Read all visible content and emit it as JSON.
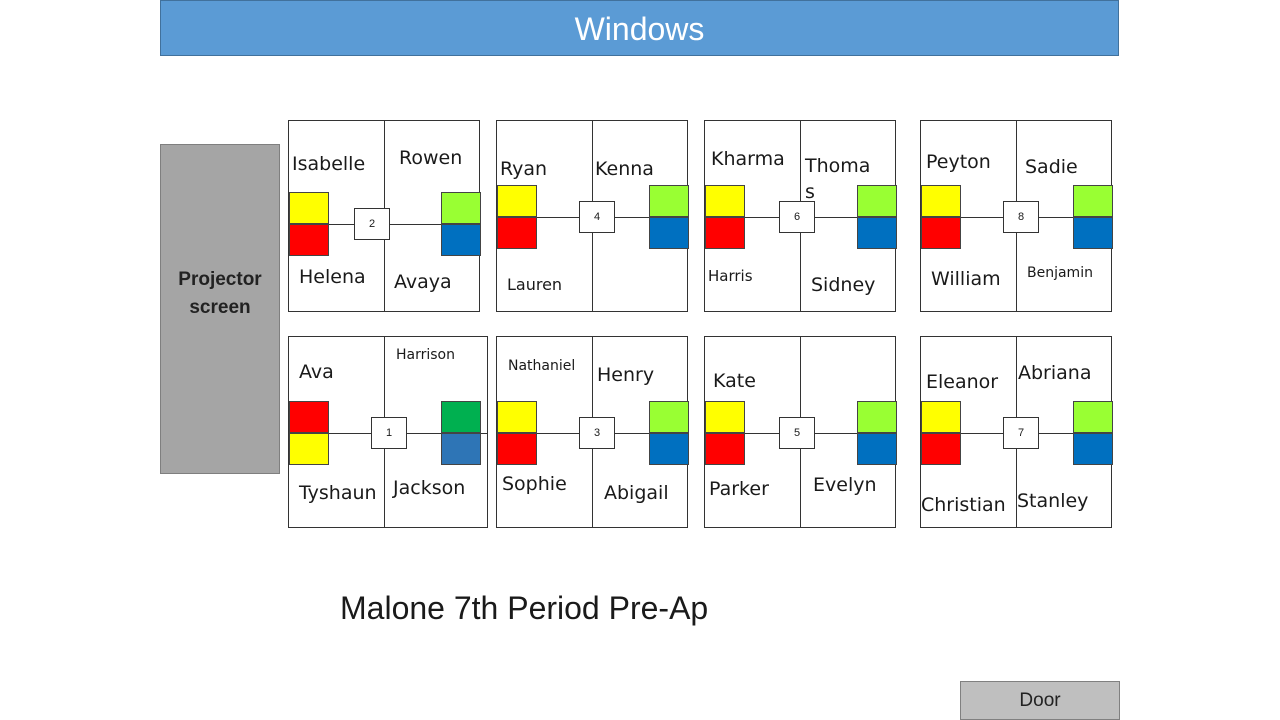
{
  "header": {
    "title": "Windows"
  },
  "projector": {
    "line1": "Projector",
    "line2": "screen"
  },
  "door": {
    "label": "Door"
  },
  "class_title": "Malone 7th Period Pre-Ap",
  "colors": {
    "yellow": "#ffff00",
    "red": "#ff0000",
    "lime": "#99ff33",
    "blue": "#0070c0",
    "green": "#00b050",
    "steel": "#2e75b6"
  },
  "tables": [
    {
      "number": "2",
      "top_left": "Isabelle",
      "top_right": "Rowen",
      "bottom_left": "Helena",
      "bottom_right": "Avaya"
    },
    {
      "number": "4",
      "top_left": "Ryan",
      "top_right": "Kenna",
      "bottom_left": "Lauren",
      "bottom_right": ""
    },
    {
      "number": "6",
      "top_left": "Kharma",
      "top_right": "Thoma s",
      "bottom_left": "Harris",
      "bottom_right": "Sidney"
    },
    {
      "number": "8",
      "top_left": "Peyton",
      "top_right": "Sadie",
      "bottom_left": "William",
      "bottom_right": "Benjamin"
    },
    {
      "number": "1",
      "top_left": "Ava",
      "top_right": "Harrison",
      "bottom_left": "Tyshaun",
      "bottom_right": "Jackson"
    },
    {
      "number": "3",
      "top_left": "Nathaniel",
      "top_right": "Henry",
      "bottom_left": "Sophie",
      "bottom_right": "Abigail"
    },
    {
      "number": "5",
      "top_left": "Kate",
      "top_right": "",
      "bottom_left": "Parker",
      "bottom_right": "Evelyn"
    },
    {
      "number": "7",
      "top_left": "Eleanor",
      "top_right": "Abriana",
      "bottom_left": "Christian",
      "bottom_right": "Stanley"
    }
  ]
}
